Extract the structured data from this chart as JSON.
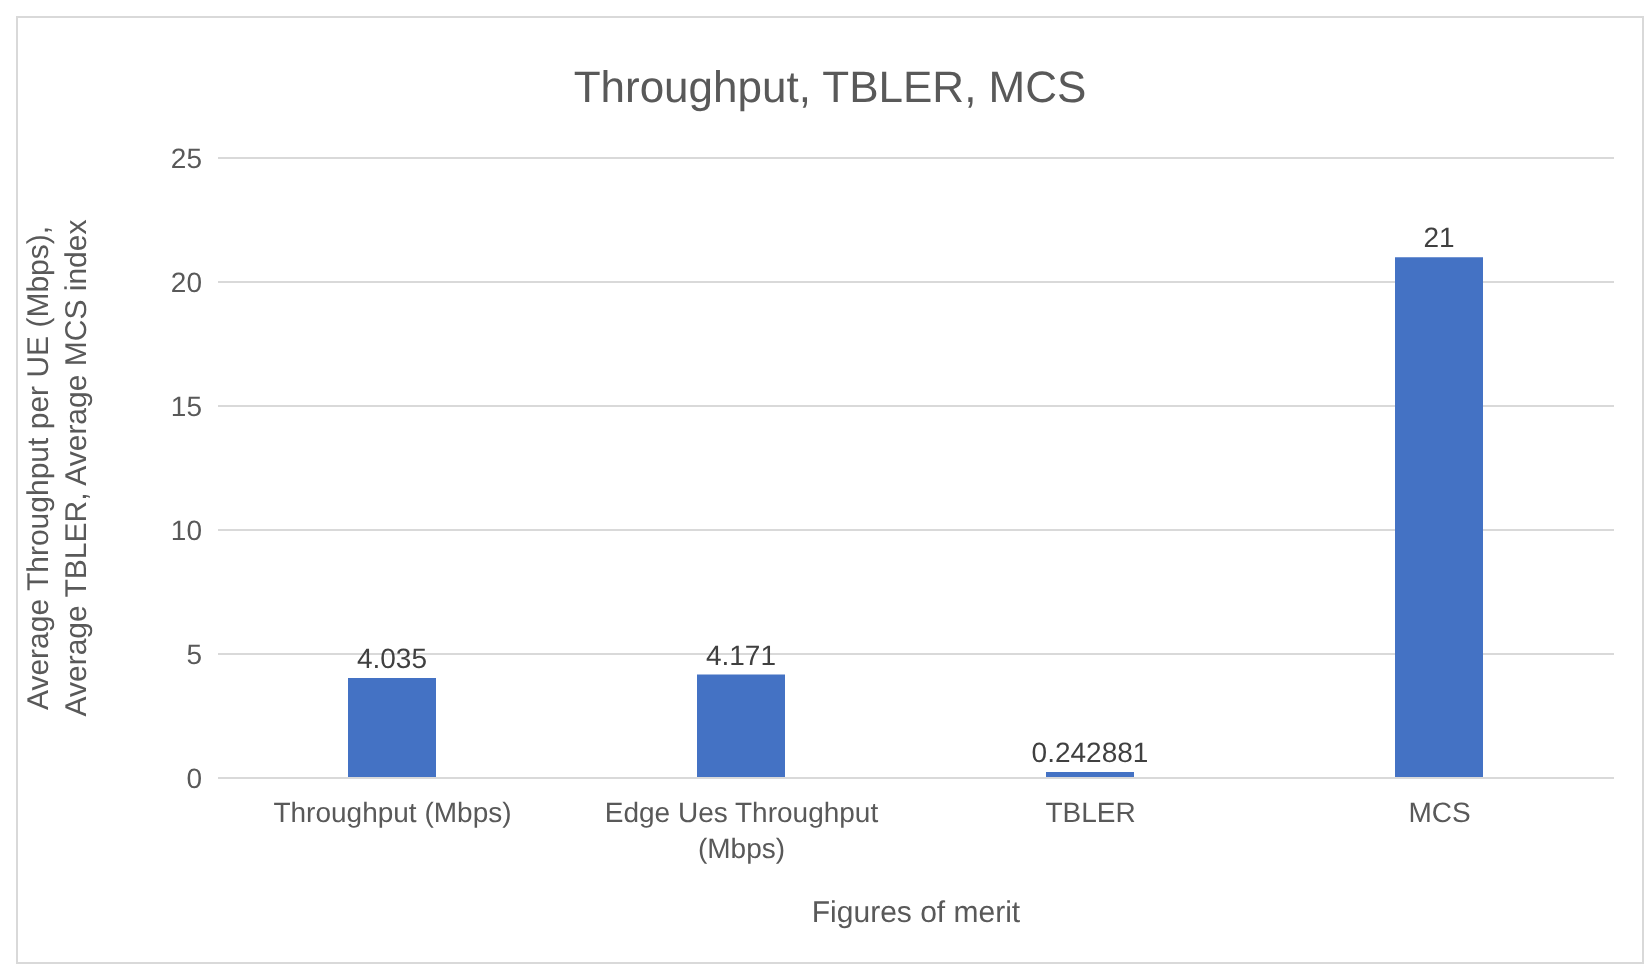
{
  "chart_data": {
    "type": "bar",
    "title": "Throughput, TBLER, MCS",
    "xlabel": "Figures of merit",
    "ylabel": "Average Throughput per UE (Mbps), Average TBLER, Average MCS index",
    "categories": [
      "Throughput (Mbps)",
      "Edge Ues Throughput (Mbps)",
      "TBLER",
      "MCS"
    ],
    "values": [
      4.035,
      4.171,
      0.242881,
      21
    ],
    "color": "#4472c4",
    "ylim": [
      0,
      25
    ],
    "yticks": [
      0,
      5,
      10,
      15,
      20,
      25
    ],
    "grid": "y",
    "data_labels": true
  }
}
